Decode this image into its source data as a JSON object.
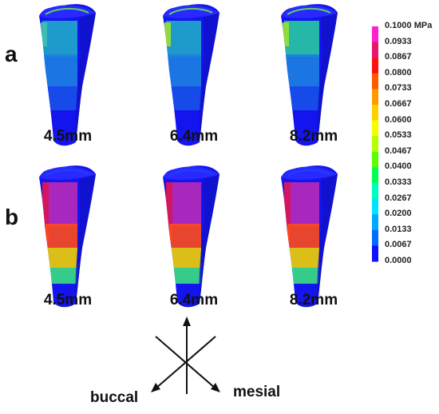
{
  "rows": [
    {
      "label": "a",
      "sizes": [
        "4.5mm",
        "6.4mm",
        "8.2mm"
      ],
      "pattern": "low"
    },
    {
      "label": "b",
      "sizes": [
        "4.5mm",
        "6.4mm",
        "8.2mm"
      ],
      "pattern": "high"
    }
  ],
  "colorbar": {
    "ticks": [
      "0.1000 MPa",
      "0.0933",
      "0.0867",
      "0.0800",
      "0.0733",
      "0.0667",
      "0.0600",
      "0.0533",
      "0.0467",
      "0.0400",
      "0.0333",
      "0.0267",
      "0.0200",
      "0.0133",
      "0.0067",
      "0.0000"
    ],
    "colors": [
      "#ff1fcf",
      "#e8176e",
      "#ff1010",
      "#ff5a00",
      "#ff9a00",
      "#ffd000",
      "#f2ff00",
      "#b6ff00",
      "#5cff00",
      "#00ff55",
      "#00ffbe",
      "#00e4ff",
      "#00a8ff",
      "#006cff",
      "#1010ff"
    ]
  },
  "orientation": {
    "buccal": "buccal",
    "mesial": "mesial"
  }
}
